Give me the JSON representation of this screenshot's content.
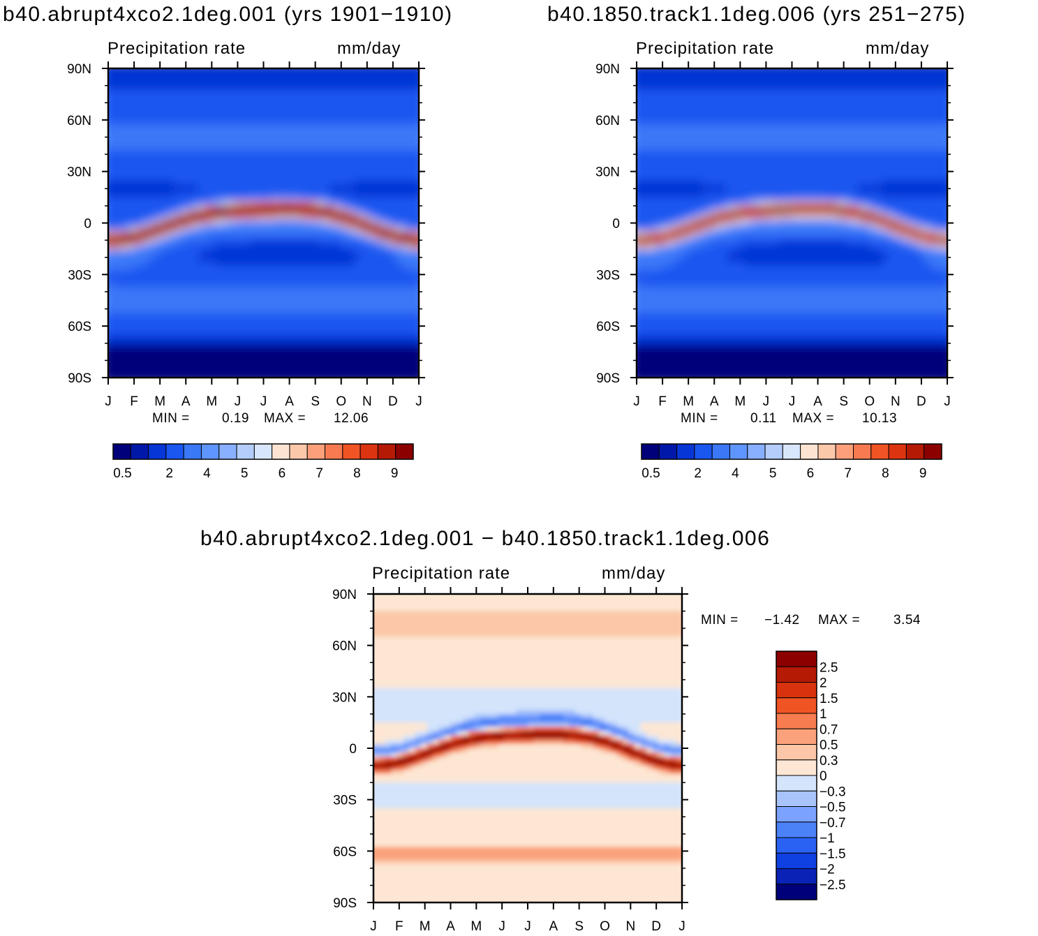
{
  "palette": {
    "seq": [
      "#00007a",
      "#0018a8",
      "#0636d6",
      "#1a56f0",
      "#3a78f8",
      "#5f95ff",
      "#88b0ff",
      "#b4cdfb",
      "#d8e6fb",
      "#fde4d2",
      "#fcc8aa",
      "#fba07a",
      "#f77a50",
      "#f05424",
      "#dc3410",
      "#b41a04",
      "#8c0000"
    ],
    "div": [
      "#00007a",
      "#0a22b6",
      "#0f40e2",
      "#2a62f4",
      "#4c82f8",
      "#7ba2ff",
      "#a9c4fa",
      "#d3e4fb",
      "#fde6d3",
      "#fcc7a8",
      "#fba27c",
      "#f77c50",
      "#f05424",
      "#d8320e",
      "#b41a04",
      "#8c0000"
    ]
  },
  "panels": {
    "left": {
      "title": "b40.abrupt4xco2.1deg.001 (yrs 1901−1910)",
      "variable": "Precipitation rate",
      "units": "mm/day",
      "min_label": "MIN =",
      "min_value": "0.19",
      "max_label": "MAX =",
      "max_value": "12.06"
    },
    "right": {
      "title": "b40.1850.track1.1deg.006 (yrs 251−275)",
      "variable": "Precipitation rate",
      "units": "mm/day",
      "min_label": "MIN =",
      "min_value": "0.11",
      "max_label": "MAX =",
      "max_value": "10.13"
    },
    "diff": {
      "title": "b40.abrupt4xco2.1deg.001 − b40.1850.track1.1deg.006",
      "variable": "Precipitation rate",
      "units": "mm/day",
      "min_label": "MIN =",
      "min_value": "−1.42",
      "max_label": "MAX =",
      "max_value": "3.54"
    }
  },
  "chart_data": [
    {
      "type": "heatmap",
      "title": "b40.abrupt4xco2.1deg.001 (yrs 1901−1910)",
      "subtitle": "Precipitation rate (mm/day)",
      "x": [
        "J",
        "F",
        "M",
        "A",
        "M",
        "J",
        "J",
        "A",
        "S",
        "O",
        "N",
        "D",
        "J"
      ],
      "y": [
        "90N",
        "60N",
        "30N",
        "0",
        "30S",
        "60S",
        "90S"
      ],
      "ylim": [
        -90,
        90
      ],
      "colorbar_levels": [
        "0.5",
        "2",
        "4",
        "5",
        "6",
        "7",
        "8",
        "9"
      ],
      "min": 0.19,
      "max": 12.06,
      "features": {
        "itcz_max_mm_day": 12.06,
        "itcz_lat_jan": -7,
        "itcz_lat_aug": 8
      }
    },
    {
      "type": "heatmap",
      "title": "b40.1850.track1.1deg.006 (yrs 251−275)",
      "subtitle": "Precipitation rate (mm/day)",
      "x": [
        "J",
        "F",
        "M",
        "A",
        "M",
        "J",
        "J",
        "A",
        "S",
        "O",
        "N",
        "D",
        "J"
      ],
      "y": [
        "90N",
        "60N",
        "30N",
        "0",
        "30S",
        "60S",
        "90S"
      ],
      "ylim": [
        -90,
        90
      ],
      "colorbar_levels": [
        "0.5",
        "2",
        "4",
        "5",
        "6",
        "7",
        "8",
        "9"
      ],
      "min": 0.11,
      "max": 10.13,
      "features": {
        "itcz_max_mm_day": 10.13,
        "itcz_lat_jan": -7,
        "itcz_lat_aug": 8
      }
    },
    {
      "type": "heatmap",
      "title": "b40.abrupt4xco2.1deg.001 − b40.1850.track1.1deg.006",
      "subtitle": "Precipitation rate (mm/day)",
      "x": [
        "J",
        "F",
        "M",
        "A",
        "M",
        "J",
        "J",
        "A",
        "S",
        "O",
        "N",
        "D",
        "J"
      ],
      "y": [
        "90N",
        "60N",
        "30N",
        "0",
        "30S",
        "60S",
        "90S"
      ],
      "ylim": [
        -90,
        90
      ],
      "colorbar_levels": [
        "2.5",
        "2",
        "1.5",
        "1",
        "0.7",
        "0.5",
        "0.3",
        "0",
        "−0.3",
        "−0.5",
        "−0.7",
        "−1",
        "−1.5",
        "−2",
        "−2.5"
      ],
      "min": -1.42,
      "max": 3.54
    }
  ]
}
